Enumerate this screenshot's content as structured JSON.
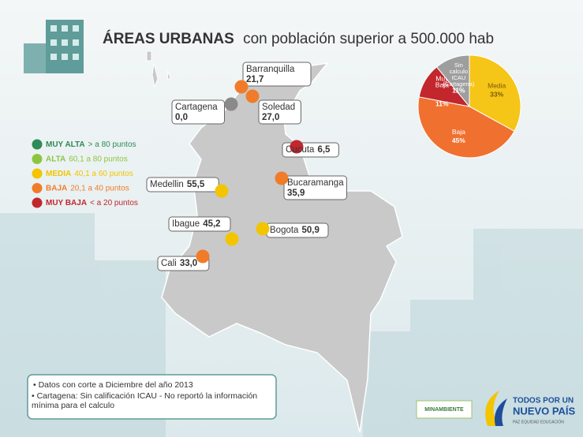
{
  "title": {
    "bold": "ÁREAS URBANAS",
    "rest": "con población superior a 500.000 hab"
  },
  "legend": [
    {
      "label": "MUY ALTA",
      "range": "> a 80 puntos",
      "color": "#2e8b57"
    },
    {
      "label": "ALTA",
      "range": "60,1 a 80 puntos",
      "color": "#8cc63f"
    },
    {
      "label": "MEDIA",
      "range": "40,1 a 60 puntos",
      "color": "#f2c500"
    },
    {
      "label": "BAJA",
      "range": "20,1 a 40 puntos",
      "color": "#f07c2a"
    },
    {
      "label": "MUY BAJA",
      "range": "<  a 20 puntos",
      "color": "#c1272d"
    }
  ],
  "cities": [
    {
      "name": "Barranquilla",
      "value": 21.7,
      "value_label": "21,7",
      "color": "#f07c2a"
    },
    {
      "name": "Soledad",
      "value": 27.0,
      "value_label": "27,0",
      "color": "#f07c2a"
    },
    {
      "name": "Cartagena",
      "value": 0.0,
      "value_label": "0,0",
      "color": "#8a8a8a"
    },
    {
      "name": "Cucuta",
      "value": 6.5,
      "value_label": "6,5",
      "color": "#c1272d"
    },
    {
      "name": "Bucaramanga",
      "value": 35.9,
      "value_label": "35,9",
      "color": "#f07c2a"
    },
    {
      "name": "Medellin",
      "value": 55.5,
      "value_label": "55,5",
      "color": "#f2c500"
    },
    {
      "name": "Ibague",
      "value": 45.2,
      "value_label": "45,2",
      "color": "#f2c500"
    },
    {
      "name": "Bogota",
      "value": 50.9,
      "value_label": "50,9",
      "color": "#f2c500"
    },
    {
      "name": "Cali",
      "value": 33.0,
      "value_label": "33,0",
      "color": "#f07c2a"
    }
  ],
  "chart_data": {
    "type": "pie",
    "categories": [
      "Media",
      "Baja",
      "Muy Baja",
      "Sin calculo ICAU (Cartagena)"
    ],
    "values": [
      33,
      45,
      11,
      11
    ],
    "value_labels": [
      "33%",
      "45%",
      "11%",
      "11%"
    ],
    "colors": [
      "#f5c518",
      "#f07030",
      "#c1272d",
      "#9e9e9e"
    ]
  },
  "notes": [
    "Datos con corte a Diciembre del año 2013",
    "Cartagena: Sin calificación ICAU - No reportó la información mínima para el calculo"
  ],
  "logos": {
    "ministry": "MINAMBIENTE",
    "slogan1": "TODOS POR UN",
    "slogan2": "NUEVO PAÍS",
    "slogan3": "PAZ  EQUIDAD  EDUCACIÓN"
  }
}
